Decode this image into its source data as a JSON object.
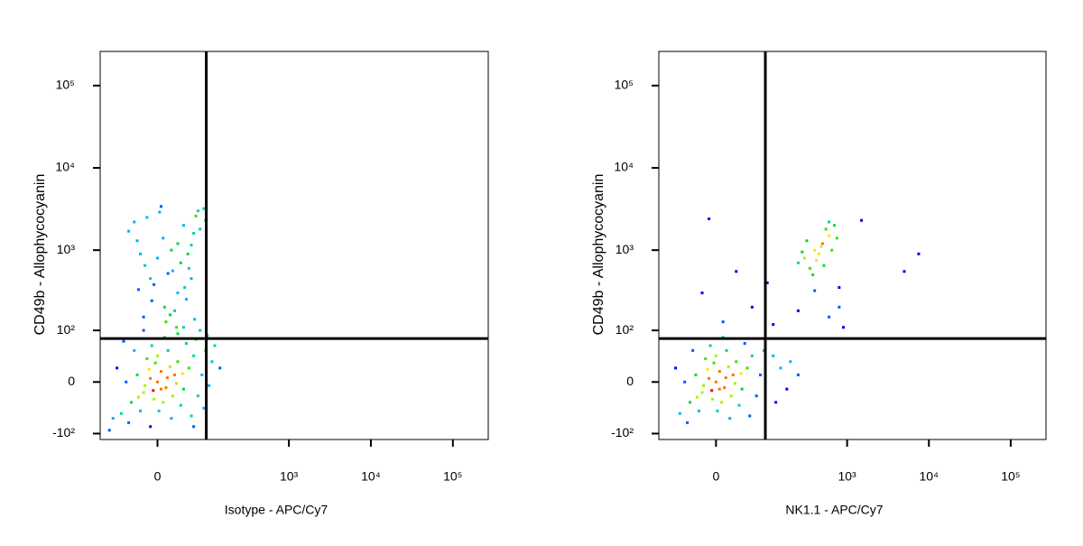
{
  "chart_data": [
    {
      "type": "scatter",
      "scale": "biexponential",
      "point_color": "density",
      "gate_color": "#000000",
      "x_label": "Isotype - APC/Cy7",
      "y_label": "CD49b - Allophycocyanin",
      "xlim": [
        -120,
        270000
      ],
      "ylim": [
        -120,
        260000
      ],
      "xticks": [
        0,
        {
          "value": 1000,
          "label": "10³"
        },
        {
          "value": 10000,
          "label": "10⁴"
        },
        {
          "value": 100000,
          "label": "10⁵"
        }
      ],
      "yticks": [
        {
          "value": -100,
          "label": "-10²"
        },
        0,
        {
          "value": 100,
          "label": "10²"
        },
        {
          "value": 1000,
          "label": "10³"
        },
        {
          "value": 10000,
          "label": "10⁴"
        },
        {
          "value": 100000,
          "label": "10⁵"
        }
      ],
      "gates": {
        "x": 92,
        "y": 77
      },
      "x": [
        0,
        -10,
        12,
        5,
        -20,
        25,
        -5,
        30,
        -30,
        8,
        40,
        -15,
        18,
        -40,
        50,
        2,
        -25,
        35,
        60,
        -50,
        15,
        -8,
        70,
        -35,
        45,
        20,
        -60,
        80,
        10,
        -45,
        90,
        55,
        -70,
        100,
        30,
        -10,
        65,
        -80,
        110,
        0,
        5,
        -12,
        22,
        -18,
        14,
        -3,
        28,
        -28,
        38,
        -6,
        120,
        85,
        -55,
        75,
        -90,
        140,
        40,
        95,
        -20,
        60,
        -20,
        10,
        30,
        -10,
        50,
        0,
        20,
        -30,
        60,
        40,
        -15,
        70,
        5,
        25,
        45,
        -5,
        15,
        35,
        -25,
        55,
        8,
        75,
        -35,
        65,
        12,
        28,
        -8,
        42,
        18,
        85,
        -45,
        55,
        30,
        -18,
        3,
        90,
        48,
        22,
        -28,
        62
      ],
      "values": [
        0,
        5,
        -8,
        15,
        -15,
        10,
        -25,
        30,
        10,
        -30,
        -10,
        35,
        22,
        -30,
        20,
        -45,
        -45,
        -35,
        40,
        0,
        50,
        60,
        -20,
        50,
        65,
        -60,
        -50,
        10,
        80,
        -70,
        50,
        -55,
        20,
        -5,
        90,
        -80,
        75,
        -60,
        30,
        40,
        -10,
        18,
        -20,
        -5,
        6,
        28,
        -2,
        -22,
        12,
        -12,
        60,
        -40,
        70,
        100,
        -90,
        20,
        110,
        85,
        100,
        -80,
        150,
        200,
        300,
        450,
        600,
        800,
        1000,
        1300,
        1600,
        2000,
        2500,
        3000,
        3400,
        180,
        250,
        380,
        520,
        700,
        900,
        1150,
        1400,
        1800,
        2200,
        2600,
        130,
        110,
        240,
        350,
        160,
        3200,
        1700,
        450,
        1200,
        650,
        2900,
        2300,
        900,
        560,
        330,
        140
      ]
    },
    {
      "type": "scatter",
      "scale": "biexponential",
      "point_color": "density",
      "gate_color": "#000000",
      "x_label": "NK1.1 - APC/Cy7",
      "y_label": "CD49b - Allophycocyanin",
      "xlim": [
        -120,
        270000
      ],
      "ylim": [
        -120,
        260000
      ],
      "xticks": [
        0,
        {
          "value": 1000,
          "label": "10³"
        },
        {
          "value": 10000,
          "label": "10⁴"
        },
        {
          "value": 100000,
          "label": "10⁵"
        }
      ],
      "yticks": [
        {
          "value": -100,
          "label": "-10²"
        },
        0,
        {
          "value": 100,
          "label": "10²"
        },
        {
          "value": 1000,
          "label": "10³"
        },
        {
          "value": 10000,
          "label": "10⁴"
        },
        {
          "value": 100000,
          "label": "10⁵"
        }
      ],
      "gates": {
        "x": 94,
        "y": 77
      },
      "x": [
        0,
        -10,
        12,
        5,
        -20,
        25,
        -5,
        30,
        -30,
        8,
        40,
        -15,
        18,
        -40,
        50,
        2,
        -25,
        35,
        60,
        -50,
        15,
        -8,
        70,
        -35,
        45,
        20,
        -60,
        80,
        10,
        -45,
        90,
        55,
        -70,
        0,
        5,
        -12,
        22,
        -18,
        14,
        -3,
        28,
        -28,
        38,
        -6,
        120,
        150,
        180,
        200,
        130,
        250,
        300,
        400,
        500,
        350,
        450,
        600,
        250,
        550,
        700,
        380,
        480,
        320,
        650,
        420,
        520,
        280,
        750,
        600,
        1500,
        5000,
        7500,
        800,
        400,
        600,
        250,
        900,
        120,
        -10,
        30,
        -20,
        60,
        10,
        100,
        800
      ],
      "values": [
        0,
        5,
        -8,
        15,
        -15,
        10,
        -25,
        30,
        10,
        -30,
        -10,
        35,
        22,
        -30,
        20,
        -45,
        -45,
        -35,
        40,
        0,
        50,
        60,
        -20,
        50,
        65,
        -60,
        -50,
        10,
        80,
        -70,
        50,
        -55,
        20,
        40,
        -10,
        18,
        -20,
        -5,
        6,
        28,
        -2,
        -22,
        12,
        -12,
        40,
        20,
        -10,
        30,
        -30,
        10,
        800,
        1000,
        1200,
        600,
        900,
        1500,
        700,
        1800,
        2000,
        500,
        1100,
        1300,
        1000,
        750,
        650,
        950,
        1400,
        2200,
        2300,
        550,
        900,
        350,
        320,
        150,
        180,
        110,
        120,
        2400,
        550,
        300,
        200,
        130,
        400,
        200
      ]
    }
  ]
}
